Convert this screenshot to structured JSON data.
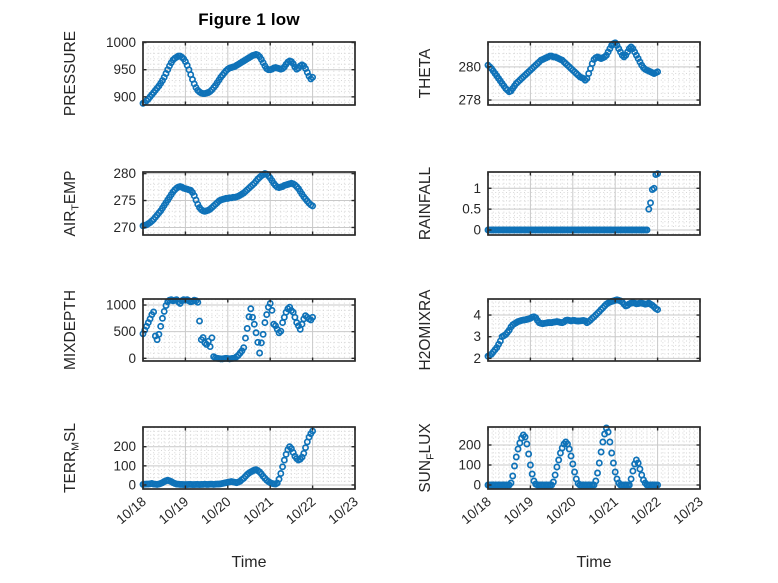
{
  "figure": {
    "title": "Figure 1 low",
    "xlabel": "Time",
    "x_axis": {
      "tick_labels": [
        "10/18",
        "10/19",
        "10/20",
        "10/21",
        "10/22",
        "10/23"
      ],
      "range_days": [
        0,
        5
      ],
      "minor_per_day": 8
    },
    "colors": {
      "marker": "#0f72b8",
      "axis_box": "#2b2b2b",
      "grid_major": "#c9c9c9",
      "grid_minor": "#d6d6d6",
      "text": "#262626",
      "background": "#ffffff"
    }
  },
  "chart_data": [
    {
      "name": "PRESSURE",
      "type": "scatter",
      "row": 0,
      "col": 0,
      "ylabel_segments": [
        {
          "t": "PRESSURE",
          "sub": false
        }
      ],
      "yticks": [
        900,
        950,
        1000
      ],
      "ytick_labels": [
        "900",
        "950",
        "1000"
      ],
      "ylim": [
        885,
        1001
      ],
      "x_start_day": 0,
      "x_step_days": 0.0416667,
      "values": [
        888,
        890,
        893,
        896,
        900,
        904,
        908,
        912,
        916,
        920,
        925,
        930,
        936,
        943,
        950,
        957,
        963,
        968,
        971,
        973,
        975,
        975,
        973,
        970,
        965,
        958,
        950,
        941,
        932,
        924,
        917,
        912,
        909,
        907,
        906,
        906,
        907,
        908,
        910,
        913,
        917,
        921,
        926,
        931,
        936,
        940,
        944,
        948,
        951,
        953,
        954,
        955,
        956,
        958,
        960,
        962,
        964,
        966,
        968,
        970,
        972,
        974,
        976,
        977,
        978,
        977,
        974,
        969,
        963,
        957,
        952,
        950,
        950,
        951,
        953,
        954,
        953,
        952,
        951,
        952,
        955,
        960,
        964,
        966,
        965,
        961,
        955,
        951,
        953,
        957,
        959,
        957,
        952,
        945,
        938,
        933,
        936
      ]
    },
    {
      "name": "THETA",
      "type": "scatter",
      "row": 0,
      "col": 1,
      "ylabel_segments": [
        {
          "t": "THETA",
          "sub": false
        }
      ],
      "yticks": [
        278,
        280
      ],
      "ytick_labels": [
        "278",
        "280"
      ],
      "ylim": [
        277.7,
        281.5
      ],
      "x_start_day": 0,
      "x_step_days": 0.0416667,
      "values": [
        280.1,
        280.0,
        279.9,
        279.75,
        279.6,
        279.45,
        279.3,
        279.15,
        279.0,
        278.85,
        278.7,
        278.6,
        278.5,
        278.55,
        278.7,
        278.85,
        279.0,
        279.1,
        279.2,
        279.3,
        279.4,
        279.5,
        279.6,
        279.7,
        279.8,
        279.9,
        280.0,
        280.1,
        280.2,
        280.3,
        280.4,
        280.45,
        280.5,
        280.55,
        280.6,
        280.65,
        280.65,
        280.6,
        280.6,
        280.55,
        280.5,
        280.45,
        280.4,
        280.3,
        280.2,
        280.1,
        280.0,
        279.9,
        279.8,
        279.7,
        279.6,
        279.5,
        279.4,
        279.35,
        279.3,
        279.2,
        279.3,
        279.6,
        279.9,
        280.2,
        280.45,
        280.55,
        280.6,
        280.55,
        280.5,
        280.55,
        280.6,
        280.7,
        280.9,
        281.1,
        281.3,
        281.4,
        281.45,
        281.3,
        281.1,
        280.9,
        280.7,
        280.6,
        280.7,
        280.9,
        281.1,
        281.2,
        281.1,
        280.9,
        280.7,
        280.5,
        280.3,
        280.1,
        279.95,
        279.85,
        279.8,
        279.75,
        279.7,
        279.65,
        279.6,
        279.65,
        279.7
      ]
    },
    {
      "name": "AIR_TEMP",
      "type": "scatter",
      "row": 1,
      "col": 0,
      "ylabel_segments": [
        {
          "t": "AIR",
          "sub": false
        },
        {
          "t": "T",
          "sub": true
        },
        {
          "t": "EMP",
          "sub": false
        }
      ],
      "yticks": [
        270,
        275,
        280
      ],
      "ytick_labels": [
        "270",
        "275",
        "280"
      ],
      "ylim": [
        268.6,
        280.3
      ],
      "x_start_day": 0,
      "x_step_days": 0.0416667,
      "values": [
        270.3,
        270.4,
        270.5,
        270.7,
        270.9,
        271.2,
        271.5,
        271.9,
        272.3,
        272.7,
        273.1,
        273.6,
        274.1,
        274.6,
        275.1,
        275.6,
        276.1,
        276.6,
        277.0,
        277.3,
        277.5,
        277.6,
        277.5,
        277.3,
        277.2,
        277.1,
        277.0,
        276.9,
        276.5,
        275.9,
        275.1,
        274.3,
        273.7,
        273.3,
        273.1,
        273.0,
        273.1,
        273.2,
        273.4,
        273.7,
        274.0,
        274.3,
        274.6,
        274.9,
        275.1,
        275.2,
        275.3,
        275.4,
        275.4,
        275.5,
        275.5,
        275.6,
        275.6,
        275.7,
        275.8,
        276.0,
        276.2,
        276.4,
        276.7,
        277.0,
        277.3,
        277.6,
        277.9,
        278.2,
        278.6,
        279.0,
        279.3,
        279.6,
        279.8,
        280.0,
        279.9,
        279.6,
        279.2,
        278.7,
        278.2,
        277.8,
        277.5,
        277.4,
        277.5,
        277.6,
        277.8,
        277.9,
        278.0,
        278.1,
        278.2,
        278.1,
        277.9,
        277.6,
        277.2,
        276.7,
        276.2,
        275.7,
        275.3,
        274.9,
        274.5,
        274.2,
        274.0
      ]
    },
    {
      "name": "RAINFALL",
      "type": "scatter",
      "row": 1,
      "col": 1,
      "ylabel_segments": [
        {
          "t": "RAINFALL",
          "sub": false
        }
      ],
      "yticks": [
        0,
        0.5,
        1
      ],
      "ytick_labels": [
        "0",
        "0.5",
        "1"
      ],
      "ylim": [
        -0.12,
        1.39
      ],
      "x_start_day": 0,
      "x_step_days": 0.0416667,
      "values": [
        0,
        0,
        0,
        0,
        0,
        0,
        0,
        0,
        0,
        0,
        0,
        0,
        0,
        0,
        0,
        0,
        0,
        0,
        0,
        0,
        0,
        0,
        0,
        0,
        0,
        0,
        0,
        0,
        0,
        0,
        0,
        0,
        0,
        0,
        0,
        0,
        0,
        0,
        0,
        0,
        0,
        0,
        0,
        0,
        0,
        0,
        0,
        0,
        0,
        0,
        0,
        0,
        0,
        0,
        0,
        0,
        0,
        0,
        0,
        0,
        0,
        0,
        0,
        0,
        0,
        0,
        0,
        0,
        0,
        0,
        0,
        0,
        0,
        0,
        0,
        0,
        0,
        0,
        0,
        0,
        0,
        0,
        0,
        0,
        0,
        0,
        0,
        0,
        0,
        0,
        0,
        0.5,
        0.65,
        0.97,
        1.0,
        1.33,
        1.35
      ]
    },
    {
      "name": "MIXDEPTH",
      "type": "scatter",
      "row": 2,
      "col": 0,
      "ylabel_segments": [
        {
          "t": "MIXDEPTH",
          "sub": false
        }
      ],
      "yticks": [
        0,
        500,
        1000
      ],
      "ytick_labels": [
        "0",
        "500",
        "1000"
      ],
      "ylim": [
        -50,
        1113
      ],
      "x_start_day": 0,
      "x_step_days": 0.0416667,
      "values": [
        460,
        530,
        600,
        670,
        740,
        820,
        870,
        420,
        350,
        450,
        600,
        750,
        880,
        990,
        1060,
        1090,
        1100,
        1080,
        1090,
        1100,
        1060,
        1030,
        1080,
        1100,
        1090,
        1100,
        1080,
        1060,
        1070,
        1090,
        1080,
        1050,
        700,
        350,
        390,
        290,
        260,
        320,
        220,
        385,
        30,
        10,
        0,
        -5,
        -10,
        -10,
        -5,
        0,
        -5,
        -10,
        -5,
        0,
        5,
        30,
        60,
        100,
        140,
        200,
        380,
        560,
        780,
        930,
        770,
        640,
        480,
        300,
        100,
        290,
        450,
        670,
        820,
        960,
        1030,
        900,
        640,
        610,
        545,
        480,
        510,
        670,
        770,
        865,
        930,
        960,
        895,
        865,
        770,
        670,
        610,
        545,
        640,
        740,
        800,
        770,
        740,
        720,
        770
      ]
    },
    {
      "name": "H2OMIXRA",
      "type": "scatter",
      "row": 2,
      "col": 1,
      "ylabel_segments": [
        {
          "t": "H2OMIXRA",
          "sub": false
        }
      ],
      "yticks": [
        2,
        3,
        4
      ],
      "ytick_labels": [
        "2",
        "3",
        "4"
      ],
      "ylim": [
        1.88,
        4.74
      ],
      "x_start_day": 0,
      "x_step_days": 0.0416667,
      "values": [
        2.1,
        2.15,
        2.2,
        2.3,
        2.4,
        2.5,
        2.65,
        2.8,
        3.0,
        3.05,
        3.1,
        3.2,
        3.3,
        3.45,
        3.55,
        3.6,
        3.65,
        3.7,
        3.72,
        3.75,
        3.77,
        3.78,
        3.8,
        3.82,
        3.85,
        3.9,
        3.92,
        3.88,
        3.75,
        3.65,
        3.62,
        3.6,
        3.62,
        3.63,
        3.65,
        3.65,
        3.65,
        3.67,
        3.68,
        3.7,
        3.68,
        3.66,
        3.65,
        3.68,
        3.75,
        3.77,
        3.75,
        3.73,
        3.75,
        3.75,
        3.73,
        3.72,
        3.73,
        3.74,
        3.75,
        3.73,
        3.65,
        3.7,
        3.77,
        3.85,
        3.92,
        4.0,
        4.08,
        4.16,
        4.25,
        4.33,
        4.42,
        4.5,
        4.55,
        4.6,
        4.63,
        4.65,
        4.68,
        4.7,
        4.68,
        4.65,
        4.6,
        4.5,
        4.42,
        4.45,
        4.52,
        4.55,
        4.57,
        4.55,
        4.52,
        4.53,
        4.55,
        4.55,
        4.53,
        4.5,
        4.52,
        4.55,
        4.5,
        4.45,
        4.38,
        4.3,
        4.25
      ]
    },
    {
      "name": "TERR_MSL",
      "type": "scatter",
      "row": 3,
      "col": 0,
      "ylabel_segments": [
        {
          "t": "TERR",
          "sub": false
        },
        {
          "t": "M",
          "sub": true
        },
        {
          "t": "SL",
          "sub": false
        }
      ],
      "yticks": [
        0,
        100,
        200
      ],
      "ytick_labels": [
        "0",
        "100",
        "200"
      ],
      "ylim": [
        -21,
        303
      ],
      "x_start_day": 0,
      "x_step_days": 0.0416667,
      "values": [
        3,
        4,
        5,
        5,
        6,
        8,
        5,
        4,
        3,
        5,
        8,
        12,
        18,
        22,
        25,
        22,
        18,
        12,
        8,
        5,
        4,
        3,
        3,
        2,
        2,
        2,
        3,
        3,
        2,
        2,
        3,
        3,
        2,
        3,
        3,
        4,
        3,
        3,
        4,
        4,
        3,
        4,
        5,
        5,
        6,
        8,
        10,
        12,
        14,
        16,
        18,
        16,
        14,
        12,
        15,
        20,
        28,
        35,
        45,
        55,
        62,
        68,
        73,
        78,
        80,
        75,
        68,
        58,
        45,
        35,
        25,
        18,
        12,
        8,
        6,
        5,
        10,
        30,
        60,
        95,
        130,
        160,
        185,
        200,
        190,
        170,
        150,
        138,
        130,
        135,
        145,
        165,
        195,
        225,
        250,
        268,
        282
      ]
    },
    {
      "name": "SUN_FLUX",
      "type": "scatter",
      "row": 3,
      "col": 1,
      "ylabel_segments": [
        {
          "t": "SUN",
          "sub": false
        },
        {
          "t": "F",
          "sub": true
        },
        {
          "t": "LUX",
          "sub": false
        }
      ],
      "yticks": [
        0,
        100,
        200
      ],
      "ytick_labels": [
        "0",
        "100",
        "200"
      ],
      "ylim": [
        -20,
        290
      ],
      "x_start_day": 0,
      "x_step_days": 0.0416667,
      "values": [
        0,
        0,
        0,
        0,
        0,
        0,
        0,
        0,
        0,
        0,
        0,
        0,
        0,
        10,
        45,
        95,
        140,
        180,
        210,
        235,
        250,
        240,
        205,
        155,
        100,
        55,
        20,
        5,
        0,
        0,
        0,
        0,
        0,
        0,
        0,
        0,
        0,
        15,
        50,
        90,
        125,
        160,
        185,
        205,
        215,
        205,
        180,
        145,
        105,
        65,
        30,
        8,
        0,
        0,
        0,
        0,
        0,
        0,
        0,
        0,
        0,
        20,
        60,
        110,
        165,
        215,
        255,
        285,
        265,
        215,
        160,
        110,
        65,
        30,
        10,
        0,
        0,
        0,
        0,
        0,
        0,
        30,
        70,
        105,
        125,
        110,
        80,
        50,
        25,
        10,
        0,
        0,
        0,
        0,
        0,
        0,
        0
      ]
    }
  ]
}
